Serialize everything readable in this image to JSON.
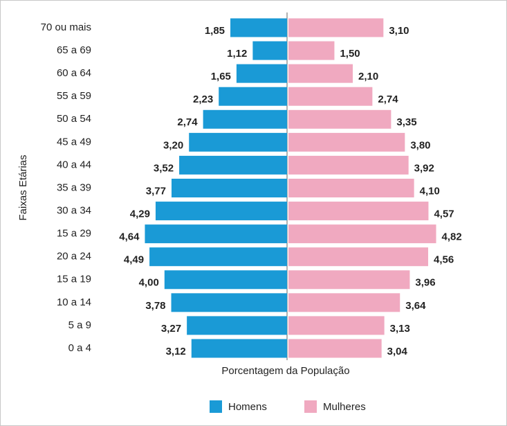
{
  "chart_data": {
    "type": "pyramid",
    "ylabel": "Faixas Etárias",
    "xlabel": "Porcentagem da População",
    "categories": [
      "70 ou mais",
      "65 a 69",
      "60 a 64",
      "55 a 59",
      "50 a 54",
      "45 a 49",
      "40 a 44",
      "35 a 39",
      "30 a 34",
      "15 a 29",
      "20 a 24",
      "15 a 19",
      "10 a 14",
      "5 a 9",
      "0 a 4"
    ],
    "series": [
      {
        "name": "Homens",
        "color": "#1a9ad6",
        "side": "left",
        "values": [
          1.85,
          1.12,
          1.65,
          2.23,
          2.74,
          3.2,
          3.52,
          3.77,
          4.29,
          4.64,
          4.49,
          4.0,
          3.78,
          3.27,
          3.12
        ],
        "value_labels": [
          "1,85",
          "1,12",
          "1,65",
          "2,23",
          "2,74",
          "3,20",
          "3,52",
          "3,77",
          "4,29",
          "4,64",
          "4,49",
          "4,00",
          "3,78",
          "3,27",
          "3,12"
        ]
      },
      {
        "name": "Mulheres",
        "color": "#f0a9c0",
        "side": "right",
        "values": [
          3.1,
          1.5,
          2.1,
          2.74,
          3.35,
          3.8,
          3.92,
          4.1,
          4.57,
          4.82,
          4.56,
          3.96,
          3.64,
          3.13,
          3.04
        ],
        "value_labels": [
          "3,10",
          "1,50",
          "2,10",
          "2,74",
          "3,35",
          "3,80",
          "3,92",
          "4,10",
          "4,57",
          "4,82",
          "4,56",
          "3,96",
          "3,64",
          "3,13",
          "3,04"
        ]
      }
    ],
    "legend": "bottom"
  }
}
